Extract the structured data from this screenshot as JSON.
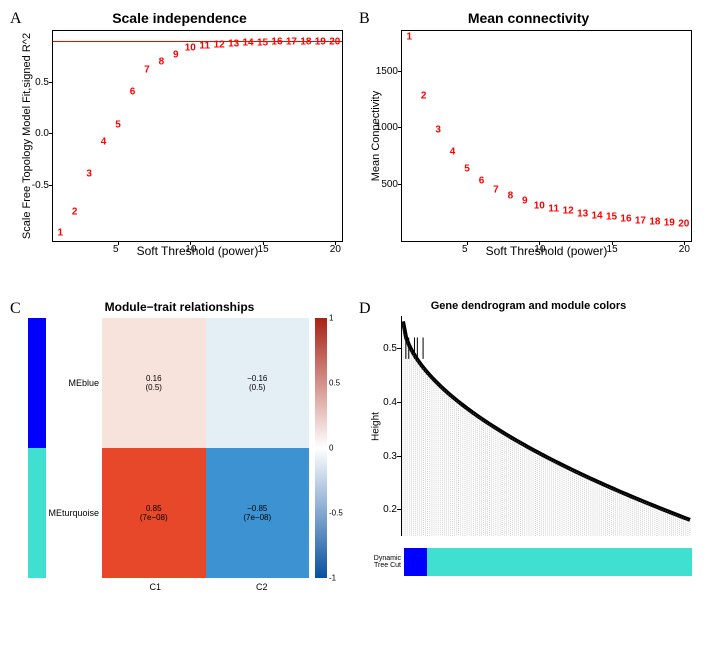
{
  "panelA": {
    "label": "A",
    "title": "Scale independence",
    "ylabel": "Scale Free Topology Model Fit,signed R^2",
    "xlabel": "Soft Threshold (power)",
    "yticks": [
      -0.5,
      0.0,
      0.5
    ],
    "xticks": [
      5,
      10,
      15,
      20
    ],
    "xlim": [
      0.5,
      20.5
    ],
    "ylim": [
      -1.05,
      1.0
    ],
    "hline": 0.9,
    "hline_color": "#ff0000",
    "point_color": "#ff0000",
    "points": [
      {
        "x": 1,
        "y": -0.97
      },
      {
        "x": 2,
        "y": -0.77
      },
      {
        "x": 3,
        "y": -0.4
      },
      {
        "x": 4,
        "y": -0.08
      },
      {
        "x": 5,
        "y": 0.08
      },
      {
        "x": 6,
        "y": 0.4
      },
      {
        "x": 7,
        "y": 0.62
      },
      {
        "x": 8,
        "y": 0.7
      },
      {
        "x": 9,
        "y": 0.77
      },
      {
        "x": 10,
        "y": 0.83
      },
      {
        "x": 11,
        "y": 0.85
      },
      {
        "x": 12,
        "y": 0.86
      },
      {
        "x": 13,
        "y": 0.87
      },
      {
        "x": 14,
        "y": 0.88
      },
      {
        "x": 15,
        "y": 0.88
      },
      {
        "x": 16,
        "y": 0.89
      },
      {
        "x": 17,
        "y": 0.89
      },
      {
        "x": 18,
        "y": 0.89
      },
      {
        "x": 19,
        "y": 0.89
      },
      {
        "x": 20,
        "y": 0.89
      }
    ]
  },
  "panelB": {
    "label": "B",
    "title": "Mean connectivity",
    "ylabel": "Mean Connectivity",
    "xlabel": "Soft Threshold (power)",
    "yticks": [
      500,
      1000,
      1500
    ],
    "xticks": [
      5,
      10,
      15,
      20
    ],
    "xlim": [
      0.5,
      20.5
    ],
    "ylim": [
      0,
      1850
    ],
    "point_color": "#ff0000",
    "points": [
      {
        "x": 1,
        "y": 1800
      },
      {
        "x": 2,
        "y": 1280
      },
      {
        "x": 3,
        "y": 980
      },
      {
        "x": 4,
        "y": 780
      },
      {
        "x": 5,
        "y": 630
      },
      {
        "x": 6,
        "y": 530
      },
      {
        "x": 7,
        "y": 450
      },
      {
        "x": 8,
        "y": 400
      },
      {
        "x": 9,
        "y": 350
      },
      {
        "x": 10,
        "y": 310
      },
      {
        "x": 11,
        "y": 280
      },
      {
        "x": 12,
        "y": 260
      },
      {
        "x": 13,
        "y": 240
      },
      {
        "x": 14,
        "y": 220
      },
      {
        "x": 15,
        "y": 210
      },
      {
        "x": 16,
        "y": 190
      },
      {
        "x": 17,
        "y": 180
      },
      {
        "x": 18,
        "y": 170
      },
      {
        "x": 19,
        "y": 160
      },
      {
        "x": 20,
        "y": 150
      }
    ]
  },
  "panelC": {
    "label": "C",
    "title": "Module−trait relationships",
    "rows": [
      {
        "name": "MEblue",
        "bar_color": "#0000ff"
      },
      {
        "name": "MEturquoise",
        "bar_color": "#40e0d0"
      }
    ],
    "cols": [
      "C1",
      "C2"
    ],
    "cells": [
      [
        {
          "val": "0.16",
          "p": "(0.5)",
          "color": "#f8e3dc"
        },
        {
          "val": "−0.16",
          "p": "(0.5)",
          "color": "#e3eef5"
        }
      ],
      [
        {
          "val": "0.85",
          "p": "(7e−08)",
          "color": "#e8482a"
        },
        {
          "val": "−0.85",
          "p": "(7e−08)",
          "color": "#3d93d1"
        }
      ]
    ],
    "colorbar": {
      "ticks": [
        1,
        0.5,
        0,
        -0.5,
        -1
      ],
      "gradient_top": "#a82216",
      "gradient_mid": "#ffffff",
      "gradient_bot": "#0850a0"
    }
  },
  "panelD": {
    "label": "D",
    "title": "Gene dendrogram and module colors",
    "ylabel": "Height",
    "yticks": [
      0.2,
      0.3,
      0.4,
      0.5
    ],
    "ylim": [
      0.15,
      0.56
    ],
    "rowlabel": "Dynamic Tree Cut",
    "module_bar": [
      {
        "color": "#0000ff",
        "width": 0.08
      },
      {
        "color": "#40e0d0",
        "width": 0.92
      }
    ],
    "dendro_color": "#000000"
  }
}
